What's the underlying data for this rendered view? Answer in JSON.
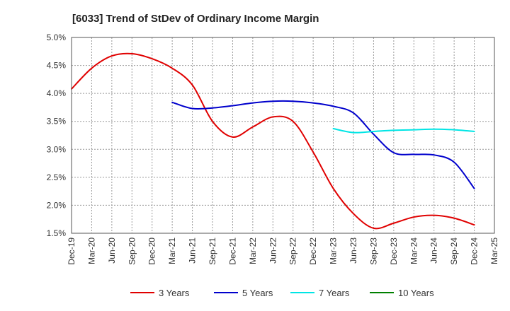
{
  "chart_data": {
    "type": "line",
    "title": "[6033]  Trend of StDev of Ordinary Income Margin",
    "xlabel": "",
    "ylabel": "",
    "x_ticks": [
      "Dec-19",
      "Mar-20",
      "Jun-20",
      "Sep-20",
      "Dec-20",
      "Mar-21",
      "Jun-21",
      "Sep-21",
      "Dec-21",
      "Mar-22",
      "Jun-22",
      "Sep-22",
      "Dec-22",
      "Mar-23",
      "Jun-23",
      "Sep-23",
      "Dec-23",
      "Mar-24",
      "Jun-24",
      "Sep-24",
      "Dec-24",
      "Mar-25"
    ],
    "y_ticks": [
      "1.5%",
      "2.0%",
      "2.5%",
      "3.0%",
      "3.5%",
      "4.0%",
      "4.5%",
      "5.0%"
    ],
    "y_tick_values": [
      1.5,
      2.0,
      2.5,
      3.0,
      3.5,
      4.0,
      4.5,
      5.0
    ],
    "ylim": [
      1.5,
      5.0
    ],
    "grid": true,
    "legend_position": "bottom",
    "series": [
      {
        "name": "3 Years",
        "color": "#e00000",
        "x": [
          "Dec-19",
          "Mar-20",
          "Jun-20",
          "Sep-20",
          "Dec-20",
          "Mar-21",
          "Jun-21",
          "Sep-21",
          "Dec-21",
          "Mar-22",
          "Jun-22",
          "Sep-22",
          "Dec-22",
          "Mar-23",
          "Jun-23",
          "Sep-23",
          "Dec-23",
          "Mar-24",
          "Jun-24",
          "Sep-24",
          "Dec-24"
        ],
        "values": [
          4.08,
          4.45,
          4.67,
          4.71,
          4.62,
          4.45,
          4.15,
          3.5,
          3.22,
          3.4,
          3.58,
          3.5,
          2.95,
          2.3,
          1.85,
          1.59,
          1.68,
          1.79,
          1.82,
          1.77,
          1.65
        ]
      },
      {
        "name": "5 Years",
        "color": "#0000cc",
        "x": [
          "Mar-21",
          "Jun-21",
          "Sep-21",
          "Dec-21",
          "Mar-22",
          "Jun-22",
          "Sep-22",
          "Dec-22",
          "Mar-23",
          "Jun-23",
          "Sep-23",
          "Dec-23",
          "Mar-24",
          "Jun-24",
          "Sep-24",
          "Dec-24"
        ],
        "values": [
          3.84,
          3.73,
          3.74,
          3.78,
          3.83,
          3.86,
          3.86,
          3.83,
          3.77,
          3.65,
          3.27,
          2.94,
          2.91,
          2.9,
          2.77,
          2.3
        ]
      },
      {
        "name": "7 Years",
        "color": "#00e5e5",
        "x": [
          "Mar-23",
          "Jun-23",
          "Sep-23",
          "Dec-23",
          "Mar-24",
          "Jun-24",
          "Sep-24",
          "Dec-24"
        ],
        "values": [
          3.37,
          3.3,
          3.32,
          3.34,
          3.35,
          3.36,
          3.35,
          3.32
        ]
      },
      {
        "name": "10 Years",
        "color": "#008000",
        "x": [],
        "values": []
      }
    ]
  }
}
